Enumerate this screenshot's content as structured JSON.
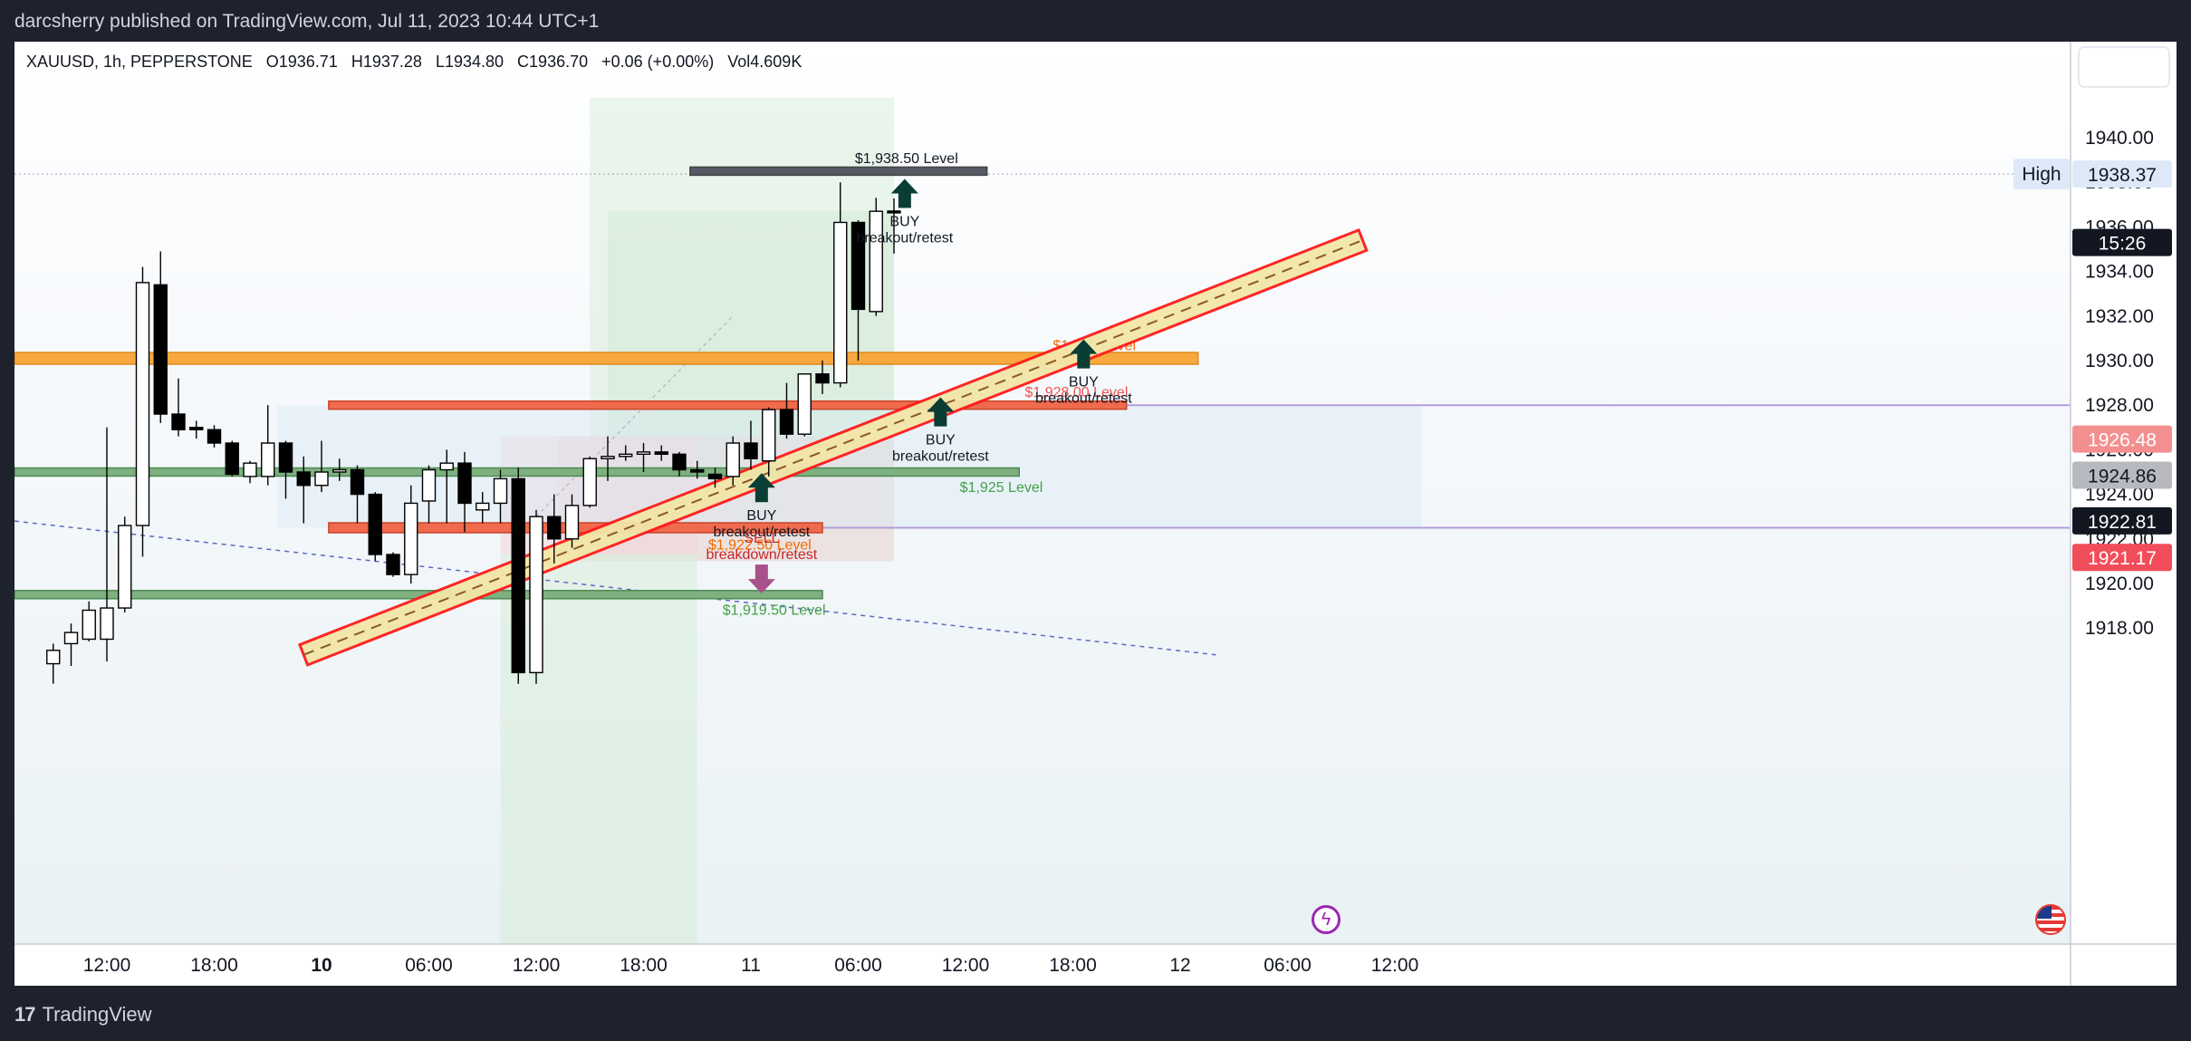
{
  "header": {
    "publisher_line": "darcsherry published on TradingView.com, Jul 11, 2023 10:44 UTC+1"
  },
  "footer": {
    "brand": "TradingView",
    "logo_mark": "17"
  },
  "legend": {
    "symbol": "XAUUSD, 1h, PEPPERSTONE",
    "open": "O1936.71",
    "high": "H1937.28",
    "low": "L1934.80",
    "close": "C1936.70",
    "change": "+0.06 (+0.00%)",
    "volume": "Vol4.609K"
  },
  "colors": {
    "background": "#1e222d",
    "up_candle": "#ffffff",
    "down_candle": "#000000",
    "orange_zone": "#f7a940",
    "red_zone": "#f06a4d",
    "green_zone": "#7fb080",
    "channel": "#ff1a1a",
    "channel_fill": "#f3e6a8",
    "buy_arrow": "#0a3d33",
    "sell_arrow": "#a8518a"
  },
  "chart_data": {
    "type": "candlestick",
    "symbol": "XAUUSD",
    "timeframe": "1h",
    "ylim": [
      1916.8,
      1941.8
    ],
    "y_ticks": [
      "1940.00",
      "1938.00",
      "1936.00",
      "1934.00",
      "1932.00",
      "1930.00",
      "1928.00",
      "1926.00",
      "1924.00",
      "1922.00",
      "1920.00",
      "1918.00"
    ],
    "x_ticks": [
      {
        "label": "12:00",
        "hour": 12,
        "bold": false
      },
      {
        "label": "18:00",
        "hour": 18,
        "bold": false
      },
      {
        "label": "10",
        "hour": 24,
        "bold": true
      },
      {
        "label": "06:00",
        "hour": 30,
        "bold": false
      },
      {
        "label": "12:00",
        "hour": 36,
        "bold": false
      },
      {
        "label": "18:00",
        "hour": 42,
        "bold": false
      },
      {
        "label": "11",
        "hour": 48,
        "bold": false
      },
      {
        "label": "06:00",
        "hour": 54,
        "bold": false
      },
      {
        "label": "12:00",
        "hour": 60,
        "bold": false
      },
      {
        "label": "18:00",
        "hour": 66,
        "bold": false
      },
      {
        "label": "12",
        "hour": 72,
        "bold": false
      },
      {
        "label": "06:00",
        "hour": 78,
        "bold": false
      },
      {
        "label": "12:00",
        "hour": 84,
        "bold": false
      }
    ],
    "candles": [
      [
        9,
        1916.4,
        1917.0,
        1915.5,
        1917.3
      ],
      [
        10,
        1917.3,
        1917.8,
        1916.3,
        1918.2
      ],
      [
        11,
        1917.5,
        1918.8,
        1917.4,
        1919.2
      ],
      [
        12,
        1917.5,
        1918.9,
        1916.5,
        1927.0
      ],
      [
        13,
        1918.9,
        1922.6,
        1918.7,
        1923.0
      ],
      [
        14,
        1922.6,
        1933.5,
        1921.2,
        1934.2
      ],
      [
        15,
        1933.4,
        1927.6,
        1927.2,
        1934.9
      ],
      [
        16,
        1927.6,
        1926.9,
        1926.6,
        1929.2
      ],
      [
        17,
        1927.0,
        1926.9,
        1926.5,
        1927.3
      ],
      [
        18,
        1926.9,
        1926.3,
        1926.1,
        1927.1
      ],
      [
        19,
        1926.3,
        1924.9,
        1924.8,
        1926.4
      ],
      [
        20,
        1924.8,
        1925.4,
        1924.5,
        1925.5
      ],
      [
        21,
        1924.8,
        1926.3,
        1924.4,
        1928.0
      ],
      [
        22,
        1926.3,
        1925.0,
        1923.8,
        1926.4
      ],
      [
        23,
        1925.0,
        1924.4,
        1922.7,
        1925.7
      ],
      [
        24,
        1924.4,
        1925.0,
        1924.1,
        1926.4
      ],
      [
        25,
        1925.0,
        1925.1,
        1924.6,
        1925.6
      ],
      [
        26,
        1925.1,
        1924.0,
        1922.7,
        1925.3
      ],
      [
        27,
        1924.0,
        1921.3,
        1921.0,
        1924.1
      ],
      [
        28,
        1921.3,
        1920.4,
        1920.3,
        1921.4
      ],
      [
        29,
        1920.4,
        1923.6,
        1920.0,
        1924.4
      ],
      [
        30,
        1923.7,
        1925.1,
        1922.7,
        1925.3
      ],
      [
        31,
        1925.1,
        1925.4,
        1922.7,
        1926.0
      ],
      [
        32,
        1925.4,
        1923.6,
        1922.3,
        1925.9
      ],
      [
        33,
        1923.3,
        1923.6,
        1922.7,
        1924.1
      ],
      [
        34,
        1923.6,
        1924.7,
        1922.7,
        1925.1
      ],
      [
        35,
        1924.7,
        1916.0,
        1915.5,
        1925.2
      ],
      [
        36,
        1916.0,
        1923.0,
        1915.5,
        1923.3
      ],
      [
        37,
        1923.0,
        1922.0,
        1920.9,
        1924.0
      ],
      [
        38,
        1922.0,
        1923.5,
        1921.6,
        1924.0
      ],
      [
        39,
        1923.5,
        1925.6,
        1923.4,
        1925.7
      ],
      [
        40,
        1925.6,
        1925.7,
        1924.6,
        1926.6
      ],
      [
        41,
        1925.7,
        1925.8,
        1925.5,
        1926.2
      ],
      [
        42,
        1925.8,
        1925.9,
        1925.0,
        1926.3
      ],
      [
        43,
        1925.9,
        1925.8,
        1925.5,
        1926.2
      ],
      [
        44,
        1925.8,
        1925.1,
        1924.8,
        1925.9
      ],
      [
        45,
        1925.1,
        1925.0,
        1924.7,
        1925.5
      ],
      [
        46,
        1924.9,
        1924.7,
        1924.3,
        1925.2
      ],
      [
        47,
        1924.8,
        1926.3,
        1924.4,
        1926.6
      ],
      [
        48,
        1926.3,
        1925.6,
        1925.1,
        1927.3
      ],
      [
        49,
        1925.5,
        1927.8,
        1924.8,
        1927.9
      ],
      [
        50,
        1927.8,
        1926.7,
        1926.5,
        1929.0
      ],
      [
        51,
        1926.7,
        1929.4,
        1926.6,
        1929.4
      ],
      [
        52,
        1929.4,
        1929.0,
        1928.5,
        1930.0
      ],
      [
        53,
        1929.0,
        1936.2,
        1928.8,
        1938.0
      ],
      [
        54,
        1936.2,
        1932.3,
        1930.0,
        1936.3
      ],
      [
        55,
        1932.2,
        1936.7,
        1932.0,
        1937.3
      ],
      [
        56,
        1936.71,
        1936.7,
        1934.8,
        1937.28
      ]
    ],
    "zones": [
      {
        "label": "$1,938.50 Level",
        "price": 1938.5,
        "kind": "gray"
      },
      {
        "label": "$1,930 Level",
        "price": 1930.1,
        "kind": "orange"
      },
      {
        "label": "$1,928.00 Level",
        "price": 1928.0,
        "kind": "red"
      },
      {
        "label": "$1,925 Level",
        "price": 1925.0,
        "kind": "green"
      },
      {
        "label": "$1,922.50 Level",
        "price": 1922.5,
        "kind": "red"
      },
      {
        "label": "$1,919.50 Level",
        "price": 1919.5,
        "kind": "green"
      }
    ],
    "channel": {
      "start": [
        23.0,
        1916.8
      ],
      "end": [
        82.2,
        1935.4
      ]
    },
    "signals": [
      {
        "direction": "BUY",
        "text": "breakout/retest",
        "hour": 56.6,
        "price": 1937.5
      },
      {
        "direction": "BUY",
        "text": "breakout/retest",
        "hour": 66.6,
        "price": 1930.3
      },
      {
        "direction": "BUY",
        "text": "breakout/retest",
        "hour": 58.6,
        "price": 1927.7
      },
      {
        "direction": "BUY",
        "text": "breakout/retest",
        "hour": 48.6,
        "price": 1924.3
      },
      {
        "direction": "SELL",
        "text": "breakdown/retest",
        "hour": 48.6,
        "price": 1920.2
      }
    ],
    "price_labels": [
      {
        "text": "1938.37",
        "price": 1938.37,
        "kind": "high",
        "prefix": "High"
      },
      {
        "text": "15:26",
        "price": 1935.3,
        "kind": "timer"
      },
      {
        "text": "1926.48",
        "price": 1926.48,
        "kind": "pink"
      },
      {
        "text": "1924.86",
        "price": 1924.86,
        "kind": "gray"
      },
      {
        "text": "1922.81",
        "price": 1922.81,
        "kind": "black"
      },
      {
        "text": "1921.17",
        "price": 1921.17,
        "kind": "red"
      }
    ],
    "grid": false
  }
}
